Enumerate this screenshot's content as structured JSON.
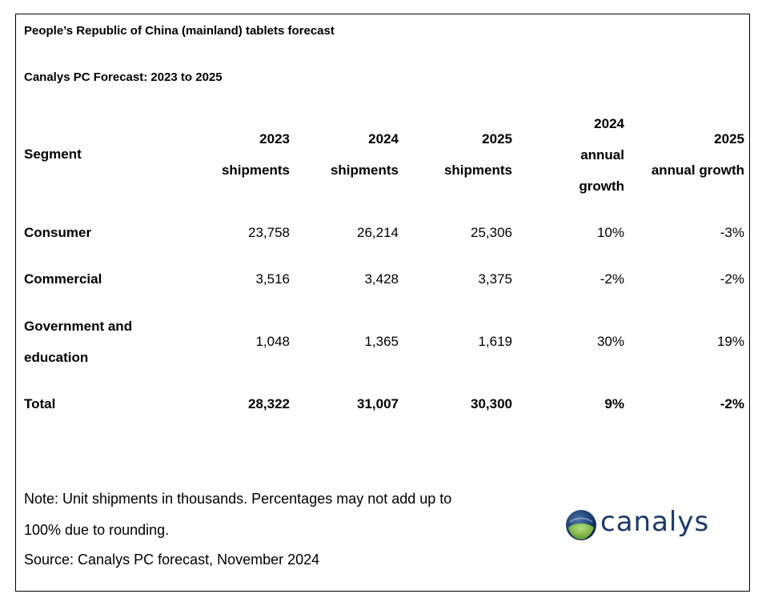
{
  "title": "People’s Republic of China (mainland) tablets forecast",
  "subtitle": "Canalys PC Forecast: 2023 to 2025",
  "table": {
    "headers": {
      "segment": "Segment",
      "y2023_l1": "2023",
      "y2023_l2": "shipments",
      "y2024_l1": "2024",
      "y2024_l2": "shipments",
      "y2025_l1": "2025",
      "y2025_l2": "shipments",
      "g2024_l1": "2024",
      "g2024_l2": "annual",
      "g2024_l3": "growth",
      "g2025_l1": "2025",
      "g2025_l2": "annual growth"
    },
    "rows": [
      {
        "segment": "Consumer",
        "s2023": "23,758",
        "s2024": "26,214",
        "s2025": "25,306",
        "g2024": "10%",
        "g2025": "-3%"
      },
      {
        "segment": "Commercial",
        "s2023": "3,516",
        "s2024": "3,428",
        "s2025": "3,375",
        "g2024": "-2%",
        "g2025": "-2%"
      },
      {
        "segment_l1": "Government and",
        "segment_l2": "education",
        "s2023": "1,048",
        "s2024": "1,365",
        "s2025": "1,619",
        "g2024": "30%",
        "g2025": "19%"
      },
      {
        "segment": "Total",
        "s2023": "28,322",
        "s2024": "31,007",
        "s2025": "30,300",
        "g2024": "9%",
        "g2025": "-2%"
      }
    ]
  },
  "notes": {
    "line1": "Note: Unit shipments in thousands. Percentages may not add up to",
    "line2": "100% due to rounding.",
    "source": "Source: Canalys PC forecast, November 2024"
  },
  "logo": {
    "text": "canalys",
    "icon": "globe-icon",
    "color_text": "#1a3a6b",
    "color_globe_dark": "#1b3f73",
    "color_globe_green": "#7ab648"
  }
}
